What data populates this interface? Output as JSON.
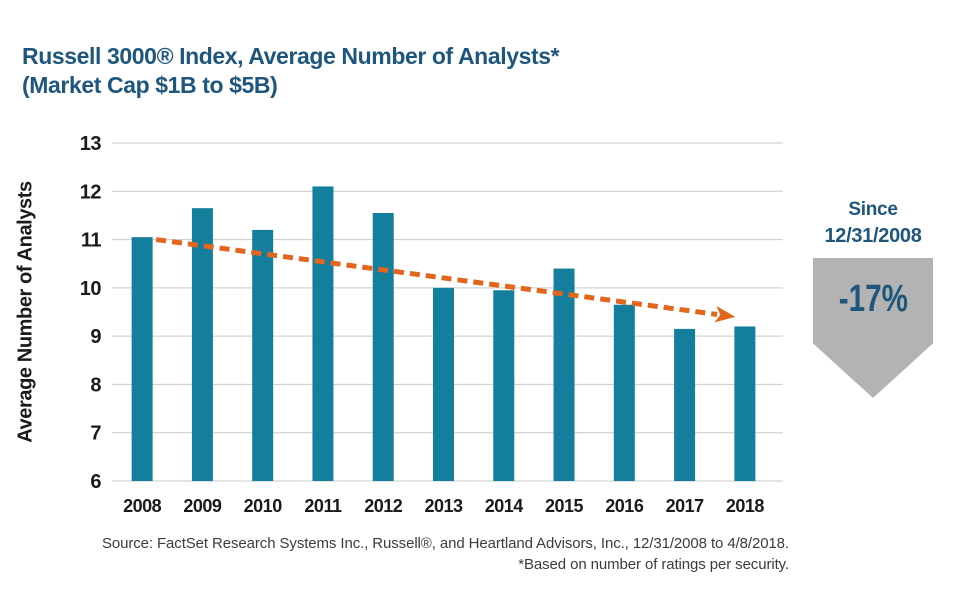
{
  "header": {
    "title_line1": "Russell 3000® Index, Average Number of Analysts*",
    "title_line2": "(Market Cap $1B to $5B)"
  },
  "chart_data": {
    "type": "bar",
    "title": "Russell 3000® Index, Average Number of Analysts* (Market Cap $1B to $5B)",
    "categories": [
      "2008",
      "2009",
      "2010",
      "2011",
      "2012",
      "2013",
      "2014",
      "2015",
      "2016",
      "2017",
      "2018"
    ],
    "values": [
      11.05,
      11.65,
      11.2,
      12.1,
      11.55,
      10.0,
      9.95,
      10.4,
      9.65,
      9.15,
      9.2
    ],
    "xlabel": "",
    "ylabel": "Average Number of Analysts",
    "ylim": [
      6,
      13
    ],
    "yticks": [
      6,
      7,
      8,
      9,
      10,
      11,
      12,
      13
    ],
    "grid": "horizontal",
    "legend": "none",
    "bar_color": "#147f9c",
    "trend": {
      "style": "dashed-arrow",
      "color": "#e2661b",
      "start": {
        "year": "2008",
        "value": 11.0
      },
      "end": {
        "year": "2018",
        "value": 9.4
      }
    }
  },
  "badge": {
    "line1": "Since",
    "line2": "12/31/2008",
    "value": "-17%",
    "bg_color": "#b3b3b3",
    "text_color": "#1e567d"
  },
  "footer": {
    "source_line": "Source: FactSet Research Systems Inc., Russell®, and Heartland Advisors, Inc., 12/31/2008 to 4/8/2018.",
    "footnote": "*Based on number of ratings per security."
  },
  "colors": {
    "title_blue": "#1e567d",
    "gridline": "#c9c9c9",
    "axis_text": "#1a1a1a",
    "source_text": "#3c3c3c",
    "background": "#ffffff"
  }
}
